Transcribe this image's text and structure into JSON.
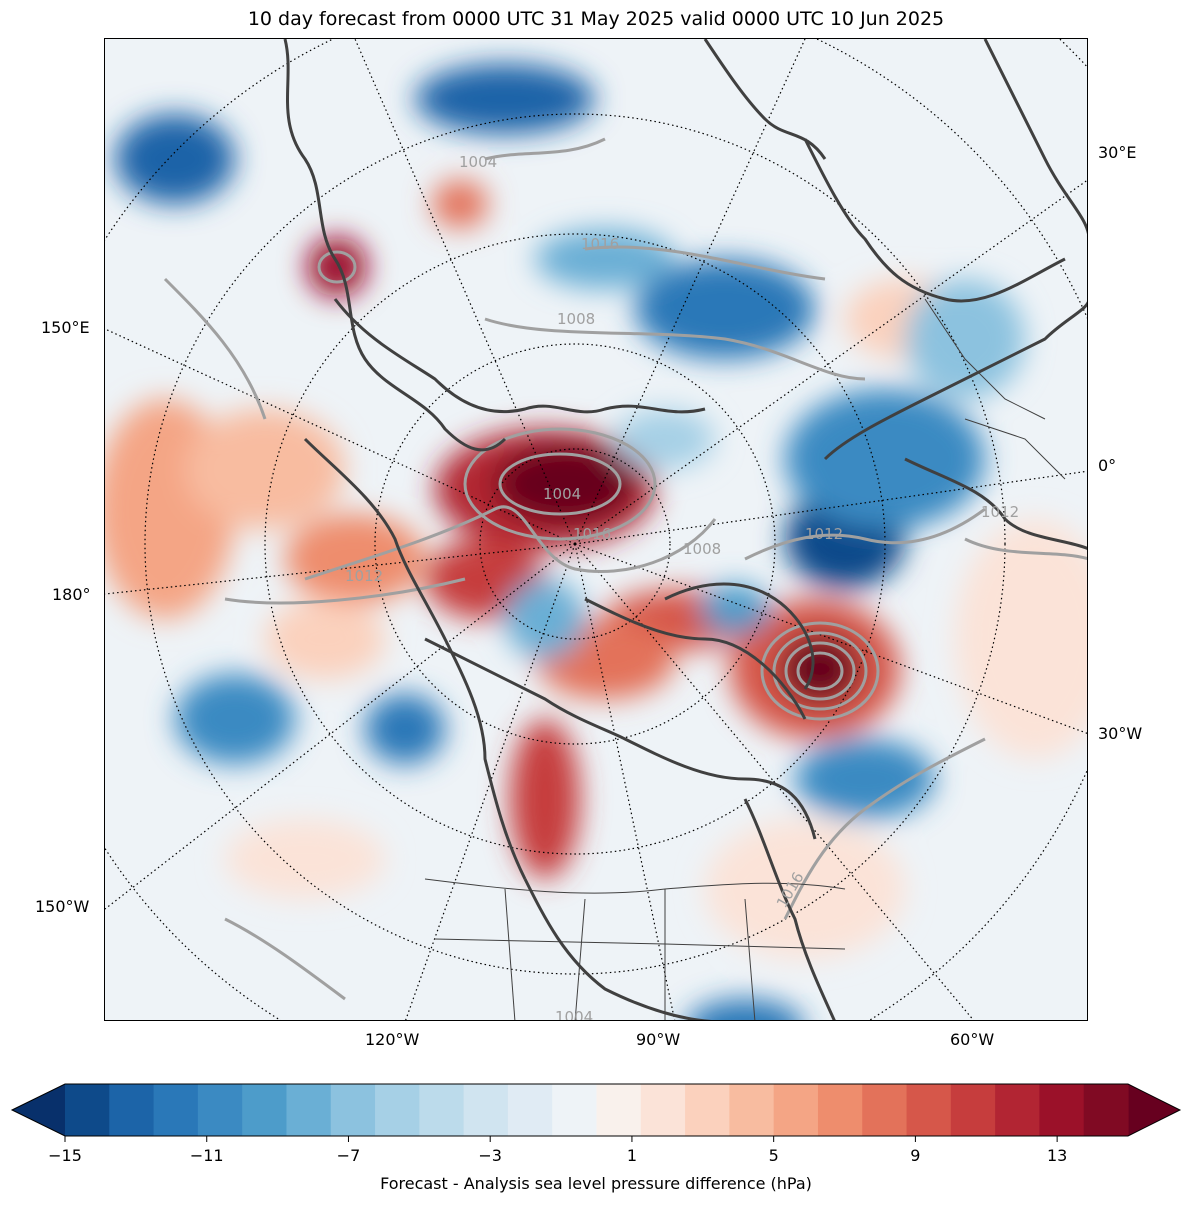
{
  "title": "10 day forecast from 0000 UTC 31 May 2025 valid 0000 UTC 10 Jun 2025",
  "map": {
    "projection": "north-polar-stereographic",
    "fill_variable": "Forecast - Analysis sea level pressure difference (hPa)",
    "contour_color": "#a0a0a0",
    "coastline_color": "#404040",
    "graticule_style": "dotted",
    "lon_labels_bottom": [
      "120°W",
      "90°W",
      "60°W"
    ],
    "lon_labels_left": [
      "150°E",
      "180°",
      "150°W"
    ],
    "lon_labels_right": [
      "30°E",
      "0°",
      "30°W"
    ],
    "contour_labels": [
      "1004",
      "1008",
      "1012",
      "1016",
      "1004",
      "1016",
      "1008",
      "1012",
      "1012",
      "1016",
      "1004"
    ]
  },
  "colorbar": {
    "label": "Forecast - Analysis sea level pressure difference (hPa)",
    "ticks": [
      "−15",
      "−11",
      "−7",
      "−3",
      "1",
      "5",
      "9",
      "13"
    ],
    "range": [
      -15,
      15
    ],
    "step": 1,
    "extend": "both",
    "colormap": "RdBu_r",
    "colors": [
      "#08306b",
      "#0e4a8a",
      "#1c64a8",
      "#2a78b8",
      "#3b8ac2",
      "#4d9cca",
      "#6aafd5",
      "#8cc2df",
      "#a6d0e6",
      "#bcdbeb",
      "#d0e4f0",
      "#e0ebf4",
      "#eef3f7",
      "#f9f1ec",
      "#fbe3d8",
      "#fbd1bd",
      "#f8bca0",
      "#f4a585",
      "#ee8d6d",
      "#e3725a",
      "#d6574a",
      "#c63d3d",
      "#b22533",
      "#9b1129",
      "#800a23",
      "#67001f"
    ]
  }
}
